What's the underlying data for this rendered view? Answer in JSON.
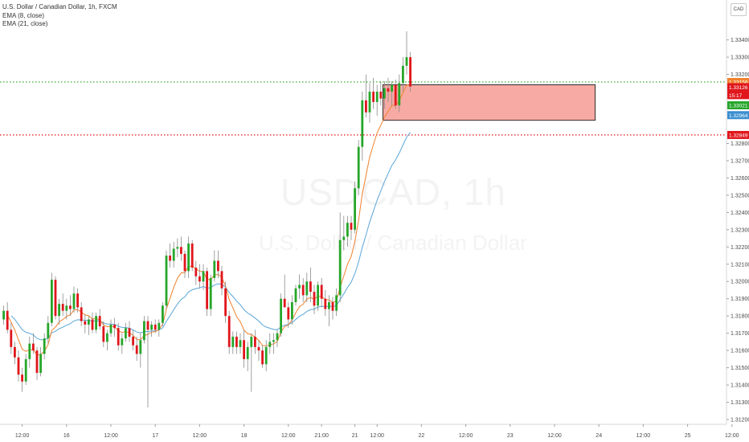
{
  "chart_data": {
    "type": "candlestick",
    "title": "U.S. Dollar / Canadian Dollar, 1h, FXCM",
    "symbol": "USDCAD, 1h",
    "description": "U.S. Dollar / Canadian Dollar",
    "currency_button": "CAD",
    "indicators": [
      "EMA (8, close)",
      "EMA (21, close)"
    ],
    "colors": {
      "up": "#26a62a",
      "down": "#e0161b",
      "ema8": "#f0822e",
      "ema21": "#5aa6d8",
      "zone_fill": "#f7aaa4",
      "green_line": "#3aa630",
      "red_line": "#e8262b"
    },
    "ylim": [
      1.312,
      1.3358
    ],
    "y_ticks": [
      "1.33400",
      "1.33300",
      "1.33200",
      "1.32800",
      "1.32700",
      "1.32600",
      "1.32500",
      "1.32400",
      "1.32300",
      "1.32200",
      "1.32100",
      "1.32000",
      "1.31900",
      "1.31800",
      "1.31700",
      "1.31600",
      "1.31500",
      "1.31400",
      "1.31300",
      "1.31200"
    ],
    "x_ticks": [
      {
        "bar": 5,
        "label": "12:00"
      },
      {
        "bar": 17,
        "label": "16"
      },
      {
        "bar": 29,
        "label": "12:00"
      },
      {
        "bar": 41,
        "label": "17"
      },
      {
        "bar": 53,
        "label": "12:00"
      },
      {
        "bar": 65,
        "label": "18"
      },
      {
        "bar": 77,
        "label": "12:00"
      },
      {
        "bar": 86,
        "label": "21:00"
      },
      {
        "bar": 95,
        "label": "21"
      },
      {
        "bar": 101,
        "label": "12:00"
      },
      {
        "bar": 113,
        "label": "22"
      },
      {
        "bar": 125,
        "label": "12:00"
      },
      {
        "bar": 137,
        "label": "23"
      },
      {
        "bar": 149,
        "label": "12:00"
      },
      {
        "bar": 161,
        "label": "24"
      },
      {
        "bar": 173,
        "label": "12:00"
      },
      {
        "bar": 185,
        "label": "25"
      },
      {
        "bar": 197,
        "label": "12:00"
      }
    ],
    "levels": {
      "green_dotted": 1.33156,
      "red_dotted": 1.32849,
      "zone_top": 1.3314,
      "zone_bottom": 1.32934,
      "zone_start_bar": 103,
      "zone_end_bar": 160
    },
    "price_labels": [
      {
        "text": "1.33156",
        "price": 1.33156,
        "color": "#f0822e"
      },
      {
        "text": "1.33126",
        "price": 1.33126,
        "color": "#e0161b"
      },
      {
        "text": "15:17",
        "price": 1.3308,
        "color": "#e0161b"
      },
      {
        "text": "1.33021",
        "price": 1.33021,
        "color": "#26a62a"
      },
      {
        "text": "1.32964",
        "price": 1.32964,
        "color": "#3a8fd0"
      },
      {
        "text": "1.32849",
        "price": 1.32849,
        "color": "#e0161b"
      }
    ],
    "candles": [
      [
        1.3178,
        1.3186,
        1.3175,
        1.3183
      ],
      [
        1.3183,
        1.3188,
        1.317,
        1.3172
      ],
      [
        1.3172,
        1.3176,
        1.3158,
        1.3162
      ],
      [
        1.3162,
        1.3165,
        1.3152,
        1.3156
      ],
      [
        1.3156,
        1.316,
        1.3142,
        1.3146
      ],
      [
        1.3146,
        1.315,
        1.3136,
        1.3142
      ],
      [
        1.3142,
        1.3158,
        1.314,
        1.3155
      ],
      [
        1.3155,
        1.3168,
        1.315,
        1.3164
      ],
      [
        1.3164,
        1.317,
        1.3158,
        1.316
      ],
      [
        1.316,
        1.3162,
        1.3143,
        1.3147
      ],
      [
        1.3147,
        1.3162,
        1.3145,
        1.3158
      ],
      [
        1.3158,
        1.317,
        1.3155,
        1.3167
      ],
      [
        1.3167,
        1.318,
        1.3164,
        1.3176
      ],
      [
        1.3176,
        1.3205,
        1.3174,
        1.3201
      ],
      [
        1.3201,
        1.3203,
        1.3178,
        1.318
      ],
      [
        1.318,
        1.319,
        1.3175,
        1.3187
      ],
      [
        1.3187,
        1.3193,
        1.318,
        1.3183
      ],
      [
        1.3183,
        1.319,
        1.3178,
        1.3186
      ],
      [
        1.3186,
        1.3192,
        1.318,
        1.3184
      ],
      [
        1.3184,
        1.3197,
        1.3182,
        1.3193
      ],
      [
        1.3193,
        1.3196,
        1.3182,
        1.3185
      ],
      [
        1.3185,
        1.3188,
        1.3174,
        1.3177
      ],
      [
        1.3177,
        1.3181,
        1.317,
        1.3175
      ],
      [
        1.3175,
        1.318,
        1.3169,
        1.3178
      ],
      [
        1.3178,
        1.3182,
        1.317,
        1.3172
      ],
      [
        1.3172,
        1.3182,
        1.317,
        1.318
      ],
      [
        1.318,
        1.3184,
        1.3172,
        1.3174
      ],
      [
        1.3174,
        1.3177,
        1.3162,
        1.3165
      ],
      [
        1.3165,
        1.3172,
        1.316,
        1.317
      ],
      [
        1.317,
        1.3178,
        1.3168,
        1.3175
      ],
      [
        1.3175,
        1.3179,
        1.3168,
        1.3173
      ],
      [
        1.3173,
        1.3176,
        1.316,
        1.3163
      ],
      [
        1.3163,
        1.317,
        1.3158,
        1.3167
      ],
      [
        1.3167,
        1.3176,
        1.3165,
        1.3173
      ],
      [
        1.3173,
        1.3177,
        1.3165,
        1.3168
      ],
      [
        1.3168,
        1.3172,
        1.316,
        1.3163
      ],
      [
        1.3163,
        1.3168,
        1.3154,
        1.3158
      ],
      [
        1.3158,
        1.317,
        1.315,
        1.3166
      ],
      [
        1.3166,
        1.318,
        1.3164,
        1.3177
      ],
      [
        1.3177,
        1.318,
        1.3127,
        1.3172
      ],
      [
        1.3172,
        1.3177,
        1.3168,
        1.3175
      ],
      [
        1.3175,
        1.3178,
        1.317,
        1.3172
      ],
      [
        1.3172,
        1.3178,
        1.3168,
        1.3176
      ],
      [
        1.3176,
        1.3188,
        1.3174,
        1.3186
      ],
      [
        1.3186,
        1.3218,
        1.3184,
        1.3215
      ],
      [
        1.3215,
        1.3222,
        1.3208,
        1.3212
      ],
      [
        1.3212,
        1.3223,
        1.3208,
        1.3219
      ],
      [
        1.3219,
        1.3225,
        1.3214,
        1.322
      ],
      [
        1.322,
        1.3226,
        1.3212,
        1.3216
      ],
      [
        1.3216,
        1.3218,
        1.3202,
        1.3206
      ],
      [
        1.3206,
        1.3226,
        1.3202,
        1.3222
      ],
      [
        1.3222,
        1.3224,
        1.3206,
        1.3208
      ],
      [
        1.3208,
        1.3212,
        1.3198,
        1.3203
      ],
      [
        1.3203,
        1.321,
        1.3196,
        1.32
      ],
      [
        1.32,
        1.321,
        1.3195,
        1.3206
      ],
      [
        1.3206,
        1.3208,
        1.318,
        1.3184
      ],
      [
        1.3184,
        1.3204,
        1.318,
        1.3202
      ],
      [
        1.3202,
        1.3218,
        1.32,
        1.3212
      ],
      [
        1.3212,
        1.3218,
        1.3202,
        1.3206
      ],
      [
        1.3206,
        1.3209,
        1.3192,
        1.3196
      ],
      [
        1.3196,
        1.32,
        1.3176,
        1.318
      ],
      [
        1.318,
        1.3183,
        1.3158,
        1.3162
      ],
      [
        1.3162,
        1.3171,
        1.3158,
        1.3168
      ],
      [
        1.3168,
        1.3171,
        1.3158,
        1.3162
      ],
      [
        1.3162,
        1.317,
        1.3158,
        1.3166
      ],
      [
        1.3166,
        1.3172,
        1.315,
        1.3155
      ],
      [
        1.3155,
        1.3165,
        1.3148,
        1.3162
      ],
      [
        1.3162,
        1.317,
        1.3136,
        1.3168
      ],
      [
        1.3168,
        1.3172,
        1.3158,
        1.3162
      ],
      [
        1.3162,
        1.3166,
        1.3154,
        1.316
      ],
      [
        1.316,
        1.3163,
        1.315,
        1.3152
      ],
      [
        1.3152,
        1.3166,
        1.3148,
        1.3162
      ],
      [
        1.3162,
        1.317,
        1.3158,
        1.3165
      ],
      [
        1.3165,
        1.317,
        1.3158,
        1.3166
      ],
      [
        1.3166,
        1.3172,
        1.3162,
        1.317
      ],
      [
        1.317,
        1.3193,
        1.3168,
        1.319
      ],
      [
        1.319,
        1.3204,
        1.3186,
        1.3185
      ],
      [
        1.3185,
        1.3188,
        1.3173,
        1.3178
      ],
      [
        1.3178,
        1.3192,
        1.3175,
        1.3188
      ],
      [
        1.3188,
        1.3198,
        1.3186,
        1.3196
      ],
      [
        1.3196,
        1.3204,
        1.319,
        1.3198
      ],
      [
        1.3198,
        1.3202,
        1.3188,
        1.3192
      ],
      [
        1.3192,
        1.3205,
        1.3188,
        1.32
      ],
      [
        1.32,
        1.3208,
        1.3188,
        1.3194
      ],
      [
        1.3194,
        1.3198,
        1.3181,
        1.3186
      ],
      [
        1.3186,
        1.32,
        1.3183,
        1.3198
      ],
      [
        1.3198,
        1.3202,
        1.3185,
        1.319
      ],
      [
        1.319,
        1.3195,
        1.318,
        1.3184
      ],
      [
        1.3184,
        1.3192,
        1.3174,
        1.3188
      ],
      [
        1.3188,
        1.3191,
        1.3178,
        1.3183
      ],
      [
        1.3183,
        1.3196,
        1.318,
        1.3192
      ],
      [
        1.3192,
        1.324,
        1.3188,
        1.3224
      ],
      [
        1.3224,
        1.3238,
        1.3218,
        1.3226
      ],
      [
        1.3226,
        1.3238,
        1.322,
        1.3234
      ],
      [
        1.3234,
        1.3238,
        1.3224,
        1.323
      ],
      [
        1.323,
        1.3258,
        1.3228,
        1.3254
      ],
      [
        1.3254,
        1.3282,
        1.325,
        1.3278
      ],
      [
        1.3278,
        1.331,
        1.327,
        1.3305
      ],
      [
        1.3305,
        1.332,
        1.3295,
        1.3298
      ],
      [
        1.3298,
        1.3315,
        1.3292,
        1.331
      ],
      [
        1.331,
        1.3318,
        1.33,
        1.3304
      ],
      [
        1.3304,
        1.3314,
        1.3296,
        1.331
      ],
      [
        1.331,
        1.3316,
        1.3302,
        1.3306
      ],
      [
        1.3306,
        1.3316,
        1.33,
        1.3312
      ],
      [
        1.3312,
        1.3318,
        1.3304,
        1.331
      ],
      [
        1.331,
        1.3316,
        1.3302,
        1.3314
      ],
      [
        1.3314,
        1.3317,
        1.33,
        1.3302
      ],
      [
        1.3302,
        1.332,
        1.3298,
        1.3315
      ],
      [
        1.3315,
        1.333,
        1.331,
        1.3325
      ],
      [
        1.3325,
        1.3345,
        1.332,
        1.333
      ],
      [
        1.333,
        1.3333,
        1.331,
        1.3313
      ]
    ]
  },
  "header": {
    "title": "U.S. Dollar / Canadian Dollar, 1h, FXCM",
    "ema8": "EMA (8, close)",
    "ema21": "EMA (21, close)"
  },
  "watermark": {
    "symbol": "USDCAD, 1h",
    "description": "U.S. Dollar / Canadian Dollar"
  },
  "axis_button": "CAD"
}
